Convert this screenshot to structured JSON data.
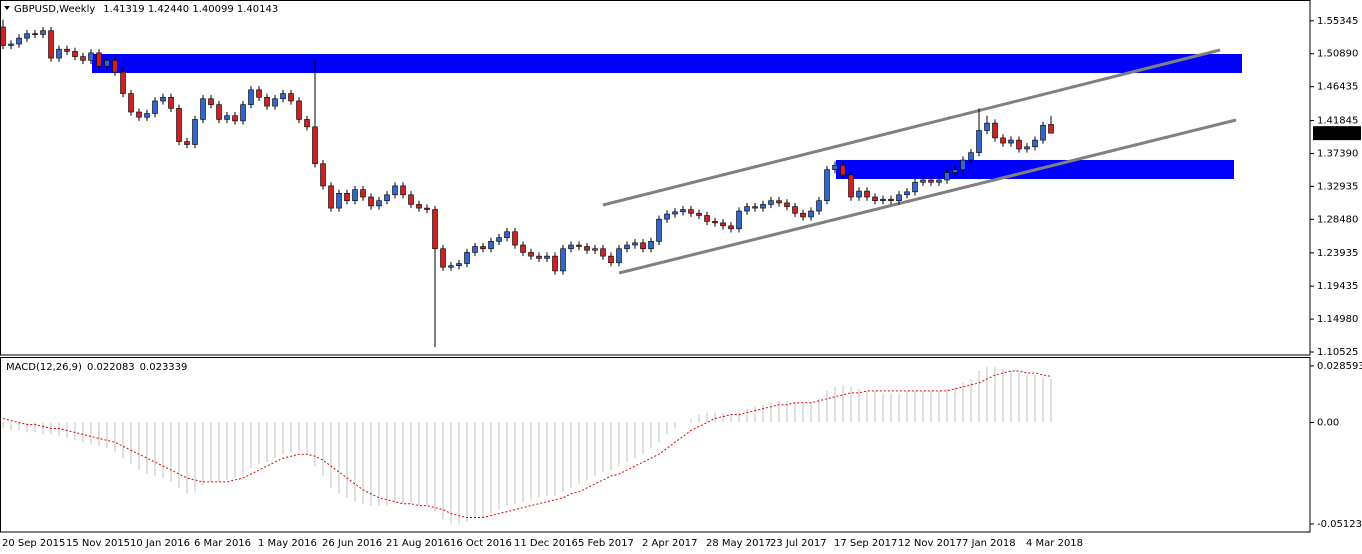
{
  "chart_data": [
    {
      "type": "candlestick",
      "symbol": "GBPUSD,Weekly",
      "quote": "1.41319 1.42440 1.40099 1.40143",
      "up_color": "#3366cc",
      "down_color": "#cc2222",
      "categories": [
        "20 Sep 2015",
        null,
        null,
        null,
        null,
        null,
        null,
        null,
        "15 Nov 2015",
        null,
        null,
        null,
        null,
        null,
        null,
        null,
        "10 Jan 2016",
        null,
        null,
        null,
        null,
        null,
        null,
        null,
        "6 Mar 2016",
        null,
        null,
        null,
        null,
        null,
        null,
        null,
        "1 May 2016",
        null,
        null,
        null,
        null,
        null,
        null,
        null,
        "26 Jun 2016",
        null,
        null,
        null,
        null,
        null,
        null,
        null,
        "21 Aug 2016",
        null,
        null,
        null,
        null,
        null,
        null,
        null,
        "16 Oct 2016",
        null,
        null,
        null,
        null,
        null,
        null,
        null,
        "11 Dec 2016",
        null,
        null,
        null,
        null,
        null,
        null,
        null,
        "5 Feb 2017",
        null,
        null,
        null,
        null,
        null,
        null,
        null,
        "2 Apr 2017",
        null,
        null,
        null,
        null,
        null,
        null,
        null,
        "28 May 2017",
        null,
        null,
        null,
        null,
        null,
        null,
        null,
        "23 Jul 2017",
        null,
        null,
        null,
        null,
        null,
        null,
        null,
        "17 Sep 2017",
        null,
        null,
        null,
        null,
        null,
        null,
        null,
        "12 Nov 2017",
        null,
        null,
        null,
        null,
        null,
        null,
        null,
        "7 Jan 2018",
        null,
        null,
        null,
        null,
        null,
        null,
        null,
        "4 Mar 2018",
        null,
        null,
        null
      ],
      "open": [
        1.545,
        1.52,
        1.522,
        1.53,
        1.536,
        1.535,
        1.54,
        1.503,
        1.515,
        1.512,
        1.505,
        1.5,
        1.51,
        1.492,
        1.5,
        1.484,
        1.455,
        1.43,
        1.423,
        1.428,
        1.445,
        1.45,
        1.435,
        1.39,
        1.386,
        1.42,
        1.448,
        1.44,
        1.42,
        1.425,
        1.418,
        1.44,
        1.46,
        1.45,
        1.438,
        1.448,
        1.455,
        1.445,
        1.42,
        1.41,
        1.36,
        1.33,
        1.3,
        1.32,
        1.31,
        1.325,
        1.315,
        1.303,
        1.31,
        1.318,
        1.33,
        1.318,
        1.305,
        1.3,
        1.298,
        1.245,
        1.22,
        1.222,
        1.225,
        1.24,
        1.248,
        1.245,
        1.255,
        1.26,
        1.268,
        1.25,
        1.24,
        1.235,
        1.232,
        1.235,
        1.215,
        1.245,
        1.25,
        1.248,
        1.243,
        1.245,
        1.235,
        1.226,
        1.245,
        1.25,
        1.253,
        1.245,
        1.255,
        1.285,
        1.292,
        1.295,
        1.298,
        1.293,
        1.29,
        1.282,
        1.28,
        1.276,
        1.272,
        1.296,
        1.302,
        1.3,
        1.305,
        1.31,
        1.307,
        1.302,
        1.293,
        1.288,
        1.296,
        1.31,
        1.352,
        1.358,
        1.345,
        1.315,
        1.323,
        1.315,
        1.31,
        1.312,
        1.31,
        1.318,
        1.322,
        1.335,
        1.338,
        1.335,
        1.338,
        1.348,
        1.352,
        1.365,
        1.375,
        1.405,
        1.415,
        1.395,
        1.388,
        1.392,
        1.38,
        1.383,
        1.392,
        1.41319
      ],
      "high": [
        1.555,
        1.527,
        1.535,
        1.541,
        1.541,
        1.545,
        1.545,
        1.52,
        1.52,
        1.517,
        1.51,
        1.515,
        1.515,
        1.505,
        1.505,
        1.489,
        1.46,
        1.435,
        1.433,
        1.45,
        1.455,
        1.455,
        1.44,
        1.395,
        1.425,
        1.453,
        1.453,
        1.445,
        1.43,
        1.43,
        1.445,
        1.465,
        1.465,
        1.455,
        1.453,
        1.46,
        1.46,
        1.45,
        1.425,
        1.502,
        1.365,
        1.335,
        1.325,
        1.325,
        1.33,
        1.33,
        1.32,
        1.315,
        1.323,
        1.335,
        1.335,
        1.323,
        1.31,
        1.305,
        1.303,
        1.25,
        1.227,
        1.23,
        1.245,
        1.253,
        1.253,
        1.26,
        1.265,
        1.273,
        1.273,
        1.255,
        1.245,
        1.24,
        1.24,
        1.24,
        1.25,
        1.255,
        1.255,
        1.253,
        1.25,
        1.25,
        1.24,
        1.25,
        1.255,
        1.258,
        1.258,
        1.26,
        1.29,
        1.297,
        1.3,
        1.303,
        1.303,
        1.298,
        1.295,
        1.287,
        1.285,
        1.281,
        1.301,
        1.307,
        1.307,
        1.31,
        1.315,
        1.315,
        1.312,
        1.307,
        1.298,
        1.301,
        1.315,
        1.357,
        1.363,
        1.363,
        1.35,
        1.328,
        1.328,
        1.32,
        1.317,
        1.317,
        1.323,
        1.327,
        1.34,
        1.343,
        1.343,
        1.343,
        1.353,
        1.357,
        1.37,
        1.38,
        1.435,
        1.425,
        1.42,
        1.4,
        1.397,
        1.397,
        1.388,
        1.397,
        1.417,
        1.4244
      ],
      "low": [
        1.515,
        1.515,
        1.517,
        1.525,
        1.53,
        1.53,
        1.498,
        1.498,
        1.507,
        1.5,
        1.495,
        1.495,
        1.487,
        1.487,
        1.479,
        1.45,
        1.425,
        1.418,
        1.418,
        1.423,
        1.44,
        1.43,
        1.385,
        1.381,
        1.381,
        1.415,
        1.435,
        1.415,
        1.415,
        1.413,
        1.413,
        1.435,
        1.445,
        1.433,
        1.433,
        1.443,
        1.44,
        1.415,
        1.405,
        1.355,
        1.325,
        1.295,
        1.295,
        1.305,
        1.305,
        1.31,
        1.298,
        1.298,
        1.305,
        1.313,
        1.313,
        1.3,
        1.295,
        1.293,
        1.112,
        1.215,
        1.215,
        1.217,
        1.22,
        1.235,
        1.24,
        1.24,
        1.25,
        1.255,
        1.245,
        1.235,
        1.23,
        1.227,
        1.227,
        1.21,
        1.21,
        1.24,
        1.243,
        1.238,
        1.238,
        1.23,
        1.221,
        1.221,
        1.24,
        1.245,
        1.24,
        1.24,
        1.25,
        1.28,
        1.287,
        1.29,
        1.288,
        1.285,
        1.277,
        1.275,
        1.271,
        1.267,
        1.267,
        1.291,
        1.295,
        1.295,
        1.3,
        1.302,
        1.297,
        1.288,
        1.283,
        1.283,
        1.291,
        1.305,
        1.347,
        1.34,
        1.31,
        1.31,
        1.31,
        1.305,
        1.305,
        1.305,
        1.305,
        1.313,
        1.317,
        1.33,
        1.33,
        1.33,
        1.333,
        1.343,
        1.347,
        1.36,
        1.37,
        1.4,
        1.39,
        1.383,
        1.383,
        1.375,
        1.375,
        1.378,
        1.387,
        1.40099
      ],
      "close": [
        1.52,
        1.522,
        1.53,
        1.536,
        1.535,
        1.54,
        1.503,
        1.515,
        1.512,
        1.505,
        1.5,
        1.51,
        1.492,
        1.5,
        1.484,
        1.455,
        1.43,
        1.423,
        1.428,
        1.445,
        1.45,
        1.435,
        1.39,
        1.386,
        1.42,
        1.448,
        1.44,
        1.42,
        1.425,
        1.418,
        1.44,
        1.46,
        1.45,
        1.438,
        1.448,
        1.455,
        1.445,
        1.42,
        1.41,
        1.36,
        1.33,
        1.3,
        1.32,
        1.31,
        1.325,
        1.315,
        1.303,
        1.31,
        1.318,
        1.33,
        1.318,
        1.305,
        1.3,
        1.298,
        1.245,
        1.22,
        1.222,
        1.225,
        1.24,
        1.248,
        1.245,
        1.255,
        1.26,
        1.268,
        1.25,
        1.24,
        1.235,
        1.232,
        1.235,
        1.215,
        1.245,
        1.25,
        1.248,
        1.243,
        1.245,
        1.235,
        1.226,
        1.245,
        1.25,
        1.253,
        1.245,
        1.255,
        1.285,
        1.292,
        1.295,
        1.298,
        1.293,
        1.29,
        1.282,
        1.28,
        1.276,
        1.272,
        1.296,
        1.302,
        1.3,
        1.305,
        1.31,
        1.307,
        1.302,
        1.293,
        1.288,
        1.296,
        1.31,
        1.352,
        1.358,
        1.345,
        1.315,
        1.323,
        1.315,
        1.31,
        1.312,
        1.31,
        1.318,
        1.322,
        1.335,
        1.338,
        1.335,
        1.338,
        1.348,
        1.352,
        1.365,
        1.375,
        1.405,
        1.415,
        1.395,
        1.388,
        1.392,
        1.38,
        1.383,
        1.392,
        1.412,
        1.40143
      ],
      "ylim": [
        1.1012,
        1.5816
      ],
      "yticks": [
        1.55345,
        {
          "value": 1.5089,
          "label": "1.50890"
        },
        1.46435,
        1.41845,
        {
          "value": 1.3739,
          "label": "1.37390"
        },
        1.32935,
        {
          "value": 1.2848,
          "label": "1.28480"
        },
        1.23935,
        1.19435,
        {
          "value": 1.1498,
          "label": "1.14980"
        },
        1.10525
      ]
    },
    {
      "type": "macd",
      "title": "MACD(12,26,9)",
      "histogram": {
        "color": "#c0c0c0",
        "values": [
          -0.003,
          -0.004,
          -0.004,
          -0.005,
          -0.005,
          -0.006,
          -0.006,
          -0.007,
          -0.008,
          -0.009,
          -0.01,
          -0.011,
          -0.012,
          -0.013,
          -0.015,
          -0.018,
          -0.021,
          -0.024,
          -0.026,
          -0.027,
          -0.028,
          -0.03,
          -0.033,
          -0.036,
          -0.035,
          -0.032,
          -0.03,
          -0.03,
          -0.029,
          -0.028,
          -0.026,
          -0.023,
          -0.021,
          -0.02,
          -0.018,
          -0.016,
          -0.015,
          -0.015,
          -0.016,
          -0.022,
          -0.027,
          -0.033,
          -0.036,
          -0.038,
          -0.04,
          -0.041,
          -0.042,
          -0.042,
          -0.042,
          -0.041,
          -0.041,
          -0.041,
          -0.042,
          -0.042,
          -0.045,
          -0.049,
          -0.051,
          -0.051,
          -0.05,
          -0.049,
          -0.048,
          -0.046,
          -0.044,
          -0.042,
          -0.041,
          -0.04,
          -0.039,
          -0.038,
          -0.037,
          -0.037,
          -0.035,
          -0.033,
          -0.031,
          -0.029,
          -0.027,
          -0.025,
          -0.024,
          -0.022,
          -0.02,
          -0.018,
          -0.016,
          -0.013,
          -0.01,
          -0.006,
          -0.003,
          0.0,
          0.002,
          0.004,
          0.005,
          0.005,
          0.005,
          0.004,
          0.005,
          0.007,
          0.008,
          0.009,
          0.01,
          0.011,
          0.011,
          0.01,
          0.01,
          0.01,
          0.012,
          0.016,
          0.018,
          0.019,
          0.018,
          0.017,
          0.016,
          0.016,
          0.015,
          0.015,
          0.015,
          0.016,
          0.016,
          0.016,
          0.016,
          0.016,
          0.017,
          0.018,
          0.02,
          0.022,
          0.026,
          0.028,
          0.028,
          0.027,
          0.026,
          0.025,
          0.024,
          0.024,
          0.023,
          0.022083
        ]
      },
      "signal": {
        "color": "#e00000",
        "values": [
          0.002,
          0.001,
          0.0,
          -0.001,
          -0.001,
          -0.002,
          -0.003,
          -0.003,
          -0.004,
          -0.005,
          -0.006,
          -0.007,
          -0.008,
          -0.009,
          -0.01,
          -0.012,
          -0.014,
          -0.016,
          -0.018,
          -0.02,
          -0.022,
          -0.024,
          -0.026,
          -0.028,
          -0.029,
          -0.03,
          -0.03,
          -0.03,
          -0.03,
          -0.029,
          -0.028,
          -0.026,
          -0.024,
          -0.022,
          -0.02,
          -0.018,
          -0.017,
          -0.016,
          -0.016,
          -0.017,
          -0.019,
          -0.022,
          -0.025,
          -0.028,
          -0.031,
          -0.034,
          -0.036,
          -0.038,
          -0.039,
          -0.04,
          -0.041,
          -0.041,
          -0.042,
          -0.042,
          -0.043,
          -0.044,
          -0.046,
          -0.047,
          -0.048,
          -0.048,
          -0.048,
          -0.047,
          -0.046,
          -0.045,
          -0.044,
          -0.043,
          -0.042,
          -0.041,
          -0.04,
          -0.039,
          -0.038,
          -0.036,
          -0.035,
          -0.033,
          -0.031,
          -0.029,
          -0.027,
          -0.026,
          -0.024,
          -0.022,
          -0.02,
          -0.018,
          -0.016,
          -0.013,
          -0.01,
          -0.007,
          -0.004,
          -0.002,
          0.0,
          0.002,
          0.003,
          0.004,
          0.004,
          0.005,
          0.006,
          0.007,
          0.008,
          0.009,
          0.009,
          0.01,
          0.01,
          0.01,
          0.011,
          0.012,
          0.013,
          0.014,
          0.015,
          0.015,
          0.016,
          0.016,
          0.016,
          0.016,
          0.016,
          0.016,
          0.016,
          0.016,
          0.016,
          0.016,
          0.016,
          0.017,
          0.018,
          0.019,
          0.02,
          0.022,
          0.024,
          0.025,
          0.026,
          0.026,
          0.025,
          0.025,
          0.024,
          0.023339
        ]
      },
      "ylim": [
        -0.0553,
        0.0331
      ],
      "yticks": [
        0.028593,
        {
          "value": 0,
          "label": "0.00"
        },
        -0.051235
      ]
    }
  ]
}
